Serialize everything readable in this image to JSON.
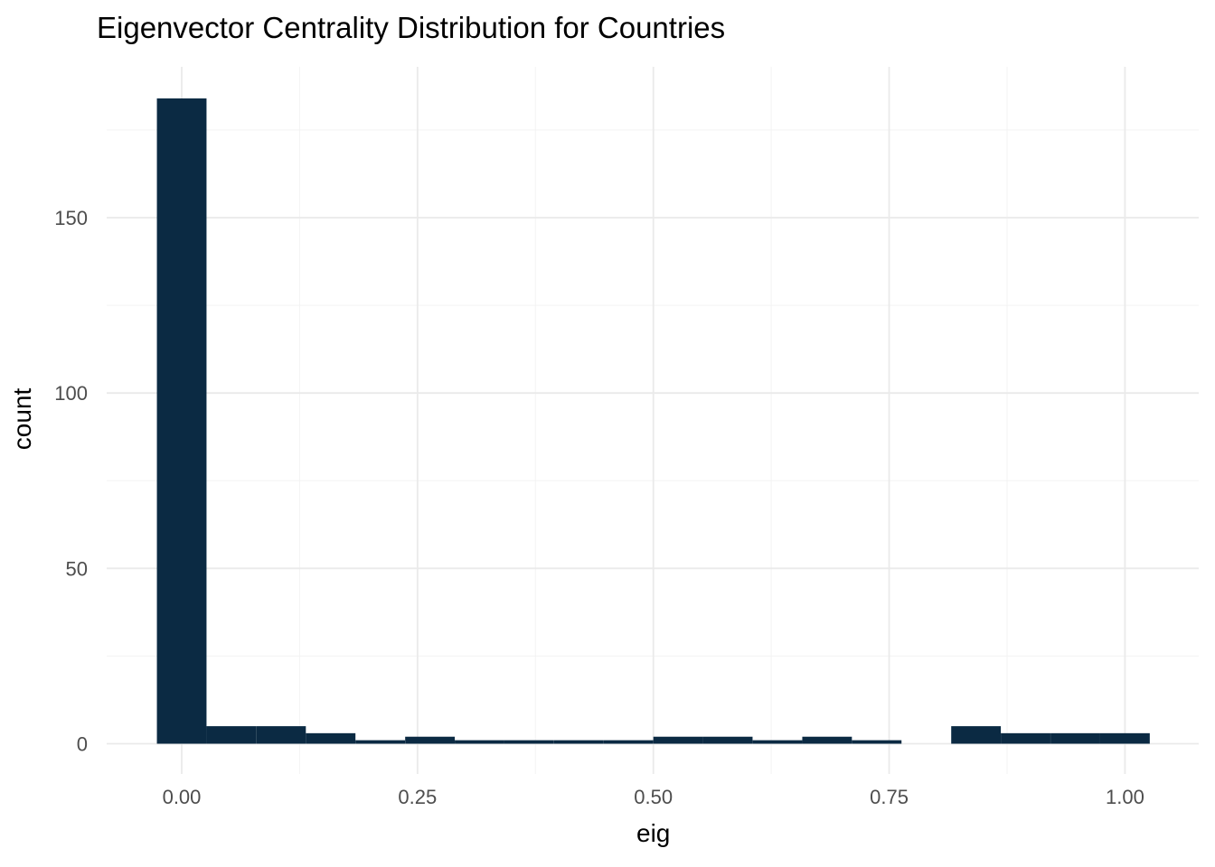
{
  "figure": {
    "title": "Eigenvector Centrality Distribution for Countries",
    "x_axis_label": "eig",
    "y_axis_label": "count"
  },
  "chart_data": {
    "type": "bar",
    "subtype": "histogram",
    "title": "Eigenvector Centrality Distribution for Countries",
    "xlabel": "eig",
    "ylabel": "count",
    "bin_width": 0.0526,
    "bin_centers": [
      0.0,
      0.0526,
      0.1053,
      0.1579,
      0.2105,
      0.2632,
      0.3158,
      0.3684,
      0.4211,
      0.4737,
      0.5263,
      0.5789,
      0.6316,
      0.6842,
      0.7368,
      0.7895,
      0.8421,
      0.8947,
      0.9474,
      1.0
    ],
    "counts": [
      184,
      5,
      5,
      3,
      1,
      2,
      1,
      1,
      1,
      1,
      2,
      2,
      1,
      2,
      1,
      0,
      5,
      3,
      3,
      3
    ],
    "total_count": 226,
    "x_tick_labels": [
      "0.00",
      "0.25",
      "0.50",
      "0.75",
      "1.00"
    ],
    "x_tick_values": [
      0,
      0.25,
      0.5,
      0.75,
      1.0
    ],
    "x_minor_gridlines": [
      0.125,
      0.375,
      0.625,
      0.875
    ],
    "y_tick_labels": [
      "0",
      "50",
      "100",
      "150"
    ],
    "y_tick_values": [
      0,
      50,
      100,
      150
    ],
    "y_minor_gridlines": [
      25,
      75,
      125,
      175
    ],
    "xlim": [
      -0.079,
      1.079
    ],
    "ylim": [
      -8.6,
      193
    ],
    "grid": true,
    "legend_position": "none",
    "colors": {
      "bar_fill": "#0b2a43",
      "background": "#ffffff",
      "gridline_major": "#eaeaea",
      "gridline_minor": "#f3f3f3",
      "tick_label": "#4d4d4d",
      "axis_title": "#000000",
      "title": "#000000"
    }
  }
}
